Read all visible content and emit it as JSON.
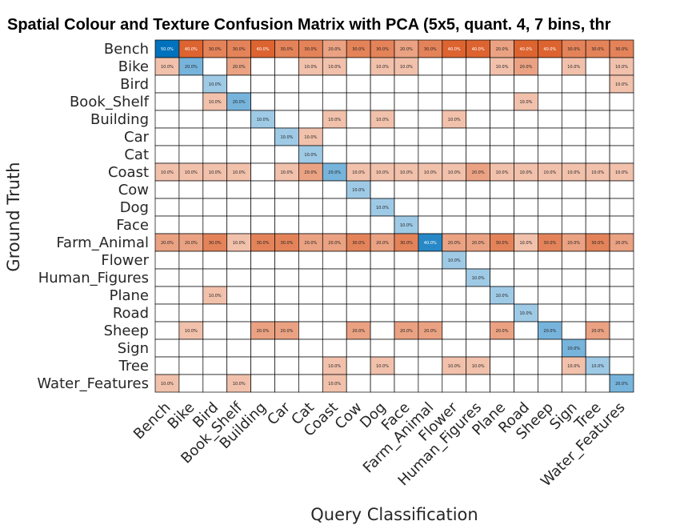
{
  "chart_data": {
    "type": "heatmap",
    "title": "Spatial Colour and Texture Confusion Matrix with PCA (5x5, quant. 4, 7 bins, thr",
    "xlabel": "Query Classification",
    "ylabel": "Ground Truth",
    "categories": [
      "Bench",
      "Bike",
      "Bird",
      "Book_Shelf",
      "Building",
      "Car",
      "Cat",
      "Coast",
      "Cow",
      "Dog",
      "Face",
      "Farm_Animal",
      "Flower",
      "Human_Figures",
      "Plane",
      "Road",
      "Sheep",
      "Sign",
      "Tree",
      "Water_Features"
    ],
    "value_format": "percent",
    "colors": {
      "diagonal": "#0072BD",
      "off_diagonal": "#D95319",
      "grid": "#000000",
      "empty": "#ffffff"
    },
    "values": [
      [
        50,
        40,
        30,
        30,
        40,
        30,
        30,
        20,
        30,
        30,
        20,
        30,
        40,
        40,
        20,
        40,
        40,
        30,
        30,
        30
      ],
      [
        10,
        20,
        0,
        20,
        0,
        0,
        10,
        10,
        0,
        10,
        10,
        0,
        0,
        0,
        10,
        20,
        0,
        10,
        0,
        10
      ],
      [
        0,
        0,
        10,
        0,
        0,
        0,
        0,
        0,
        0,
        0,
        0,
        0,
        0,
        0,
        0,
        0,
        0,
        0,
        0,
        10
      ],
      [
        0,
        0,
        10,
        20,
        0,
        0,
        0,
        0,
        0,
        0,
        0,
        0,
        0,
        0,
        0,
        10,
        0,
        0,
        0,
        0
      ],
      [
        0,
        0,
        0,
        0,
        10,
        0,
        0,
        10,
        0,
        10,
        0,
        0,
        10,
        0,
        0,
        0,
        0,
        0,
        0,
        0
      ],
      [
        0,
        0,
        0,
        0,
        0,
        10,
        10,
        0,
        0,
        0,
        0,
        0,
        0,
        0,
        0,
        0,
        0,
        0,
        0,
        0
      ],
      [
        0,
        0,
        0,
        0,
        0,
        0,
        10,
        0,
        0,
        0,
        0,
        0,
        0,
        0,
        0,
        0,
        0,
        0,
        0,
        0
      ],
      [
        10,
        10,
        10,
        10,
        0,
        10,
        20,
        20,
        10,
        10,
        10,
        10,
        10,
        20,
        10,
        10,
        10,
        10,
        10,
        10
      ],
      [
        0,
        0,
        0,
        0,
        0,
        0,
        0,
        0,
        10,
        0,
        0,
        0,
        0,
        0,
        0,
        0,
        0,
        0,
        0,
        0
      ],
      [
        0,
        0,
        0,
        0,
        0,
        0,
        0,
        0,
        0,
        10,
        0,
        0,
        0,
        0,
        0,
        0,
        0,
        0,
        0,
        0
      ],
      [
        0,
        0,
        0,
        0,
        0,
        0,
        0,
        0,
        0,
        0,
        10,
        0,
        0,
        0,
        0,
        0,
        0,
        0,
        0,
        0
      ],
      [
        20,
        20,
        30,
        10,
        30,
        30,
        20,
        20,
        30,
        20,
        30,
        40,
        20,
        20,
        30,
        10,
        30,
        20,
        30,
        20
      ],
      [
        0,
        0,
        0,
        0,
        0,
        0,
        0,
        0,
        0,
        0,
        0,
        0,
        10,
        0,
        0,
        0,
        0,
        0,
        0,
        0
      ],
      [
        0,
        0,
        0,
        0,
        0,
        0,
        0,
        0,
        0,
        0,
        0,
        0,
        0,
        10,
        0,
        0,
        0,
        0,
        0,
        0
      ],
      [
        0,
        0,
        10,
        0,
        0,
        0,
        0,
        0,
        0,
        0,
        0,
        0,
        0,
        0,
        10,
        0,
        0,
        0,
        0,
        0
      ],
      [
        0,
        0,
        0,
        0,
        0,
        0,
        0,
        0,
        0,
        0,
        0,
        0,
        0,
        0,
        0,
        10,
        0,
        0,
        0,
        0
      ],
      [
        0,
        10,
        0,
        0,
        20,
        20,
        0,
        0,
        20,
        0,
        20,
        20,
        0,
        0,
        20,
        0,
        20,
        0,
        20,
        0
      ],
      [
        0,
        0,
        0,
        0,
        0,
        0,
        0,
        0,
        0,
        0,
        0,
        0,
        0,
        0,
        0,
        0,
        0,
        20,
        0,
        0
      ],
      [
        0,
        0,
        0,
        0,
        0,
        0,
        0,
        10,
        0,
        10,
        0,
        0,
        10,
        10,
        0,
        0,
        0,
        10,
        10,
        0
      ],
      [
        10,
        0,
        0,
        10,
        0,
        0,
        0,
        10,
        0,
        0,
        0,
        0,
        0,
        0,
        0,
        0,
        0,
        0,
        0,
        20
      ]
    ]
  }
}
